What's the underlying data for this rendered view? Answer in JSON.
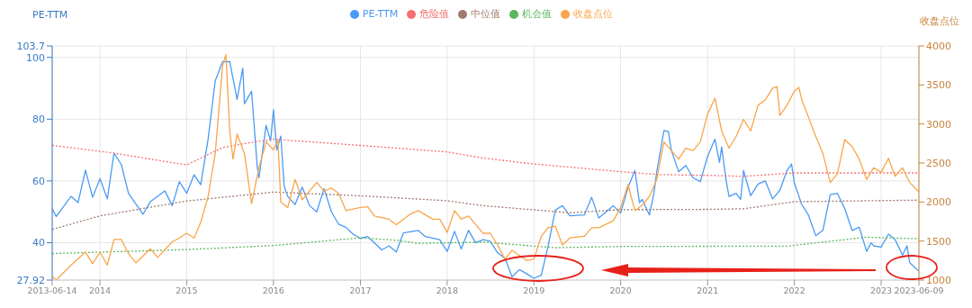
{
  "chart_data": {
    "type": "line",
    "ylabel": "PE-TTM",
    "y2label": "收盘点位",
    "xlim": [
      "2013-06-14",
      "2023-06-09"
    ],
    "xticks": [
      "2013-06-14",
      "2014",
      "2015",
      "2016",
      "2017",
      "2018",
      "2019",
      "2020",
      "2021",
      "2022",
      "2023",
      "2023-06-09"
    ],
    "ylim": [
      27.92,
      103.7
    ],
    "yticks": [
      27.92,
      40,
      60,
      80,
      100,
      103.7
    ],
    "y2lim": [
      1000,
      4000
    ],
    "y2ticks": [
      1000,
      1500,
      2000,
      2500,
      3000,
      3500,
      4000
    ],
    "grid": true,
    "legend": "top",
    "marker": "none",
    "line_style": "solid",
    "series": [
      {
        "name": "PE-TTM",
        "color": "#4a9af5",
        "x": [
          "2013-06-14",
          "2013-07",
          "2013-09",
          "2013-10",
          "2013-11",
          "2013-12",
          "2014-01",
          "2014-02",
          "2014-03",
          "2014-04",
          "2014-05",
          "2014-07",
          "2014-08",
          "2014-10",
          "2014-11",
          "2014-12",
          "2015-01",
          "2015-02",
          "2015-03",
          "2015-04",
          "2015-05",
          "2015-06",
          "2015-07",
          "2015-08",
          "2015-08-25",
          "2015-09",
          "2015-10",
          "2015-10-25",
          "2015-11",
          "2015-12",
          "2015-12-20",
          "2016-01",
          "2016-01-15",
          "2016-02",
          "2016-02-15",
          "2016-03",
          "2016-04",
          "2016-05",
          "2016-06",
          "2016-07",
          "2016-08",
          "2016-09",
          "2016-10",
          "2016-11",
          "2016-12",
          "2017-01",
          "2017-02",
          "2017-04",
          "2017-05",
          "2017-06",
          "2017-07",
          "2017-09",
          "2017-10",
          "2017-12",
          "2018-01",
          "2018-02",
          "2018-03",
          "2018-04",
          "2018-05",
          "2018-06",
          "2018-07",
          "2018-08",
          "2018-09",
          "2018-10",
          "2018-11",
          "2018-12",
          "2019-01",
          "2019-02",
          "2019-03",
          "2019-04",
          "2019-05",
          "2019-06",
          "2019-08",
          "2019-09",
          "2019-10",
          "2019-12",
          "2020-01",
          "2020-02",
          "2020-03",
          "2020-03-20",
          "2020-04",
          "2020-05",
          "2020-05-20",
          "2020-06",
          "2020-07",
          "2020-07-20",
          "2020-08",
          "2020-09",
          "2020-10",
          "2020-11",
          "2020-12",
          "2021-01",
          "2021-02",
          "2021-02-20",
          "2021-03",
          "2021-03-20",
          "2021-04",
          "2021-05",
          "2021-05-20",
          "2021-06",
          "2021-07",
          "2021-08",
          "2021-09",
          "2021-10",
          "2021-11",
          "2021-12",
          "2021-12-20",
          "2022-01",
          "2022-02",
          "2022-03",
          "2022-04",
          "2022-05",
          "2022-06",
          "2022-07",
          "2022-08",
          "2022-09",
          "2022-10",
          "2022-11",
          "2022-11-20",
          "2022-12",
          "2023-01",
          "2023-02",
          "2023-03",
          "2023-04",
          "2023-04-20",
          "2023-05",
          "2023-06-09"
        ],
        "values": [
          51,
          48.5,
          55,
          53,
          63.5,
          54.7,
          60.7,
          54.2,
          69,
          65.3,
          56,
          49.2,
          53.3,
          56.8,
          52,
          59.8,
          56,
          62,
          58.8,
          73.5,
          92.4,
          98.6,
          98.6,
          86.4,
          96.5,
          85,
          89,
          64.4,
          61,
          78,
          73,
          83,
          70,
          74.5,
          58.4,
          55,
          52.4,
          58,
          52,
          50,
          57.5,
          50,
          46,
          45,
          42.8,
          41.4,
          42,
          37.7,
          39,
          37,
          43.2,
          44,
          42,
          41,
          37.2,
          43.7,
          38,
          44,
          40,
          41,
          40.5,
          36.8,
          35,
          29,
          31.3,
          30,
          28.5,
          29.5,
          38.6,
          50.6,
          52,
          48.7,
          49,
          54.7,
          48,
          52,
          49.6,
          57.9,
          63.4,
          53,
          54,
          49,
          56,
          63,
          76.3,
          76,
          70,
          63,
          65,
          61,
          59.8,
          68,
          73.5,
          66,
          71,
          60,
          55,
          56,
          54,
          63.4,
          55.2,
          59,
          60,
          54.2,
          57,
          63.4,
          65.5,
          59.3,
          52.4,
          49,
          42.3,
          44,
          55.6,
          56,
          51,
          44,
          45,
          37.2,
          40,
          39,
          38.6,
          42.8,
          41,
          36,
          39,
          33.6,
          30.8
        ]
      },
      {
        "name": "危险值",
        "color": "#f57070",
        "line_style": "dotted",
        "x": [
          "2013-06-14",
          "2014-03",
          "2015-01",
          "2015-06",
          "2015-10",
          "2016-01",
          "2017-01",
          "2018-01",
          "2018-06",
          "2019-01",
          "2020-01",
          "2020-06",
          "2021-01",
          "2021-06",
          "2022-01",
          "2023-06-09"
        ],
        "values": [
          71.5,
          69,
          65.2,
          70.8,
          72.5,
          73.5,
          71.5,
          69.4,
          67.4,
          65.5,
          63,
          62.1,
          61.8,
          61.5,
          62.6,
          62.6
        ]
      },
      {
        "name": "中位值",
        "color": "#a07a70",
        "line_style": "dotted",
        "x": [
          "2013-06-14",
          "2014-01",
          "2015-01",
          "2016-01",
          "2017-01",
          "2018-01",
          "2018-06",
          "2019-06",
          "2020-01",
          "2021-01",
          "2021-06",
          "2022-01",
          "2023-06-09"
        ],
        "values": [
          44.3,
          48.7,
          53.5,
          56.4,
          55.2,
          53.6,
          52,
          49.7,
          50.7,
          50.8,
          51,
          53.3,
          53.8
        ]
      },
      {
        "name": "机会值",
        "color": "#5db85d",
        "line_style": "dotted",
        "x": [
          "2013-06-14",
          "2015-01",
          "2016-01",
          "2017-01",
          "2017-06",
          "2017-09",
          "2018-06",
          "2019-04",
          "2020-01",
          "2021-12",
          "2022-06",
          "2022-11",
          "2023-06-09"
        ],
        "values": [
          36.5,
          37.8,
          39.1,
          41.6,
          40.8,
          39.8,
          40.2,
          38.4,
          38.8,
          38.9,
          40.5,
          41.8,
          41.3
        ]
      },
      {
        "name": "收盘点位",
        "color": "#f9a54a",
        "axis": "y2",
        "x": [
          "2013-06-14",
          "2013-07",
          "2013-09",
          "2013-11",
          "2013-12",
          "2014-01",
          "2014-02",
          "2014-03",
          "2014-04",
          "2014-05",
          "2014-06",
          "2014-08",
          "2014-09",
          "2014-11",
          "2014-12",
          "2015-01",
          "2015-02",
          "2015-03",
          "2015-04",
          "2015-05",
          "2015-06",
          "2015-06-15",
          "2015-07",
          "2015-07-15",
          "2015-08",
          "2015-09",
          "2015-10",
          "2015-11",
          "2015-12",
          "2016-01",
          "2016-01-20",
          "2016-02",
          "2016-03",
          "2016-04",
          "2016-05",
          "2016-07",
          "2016-08",
          "2016-09",
          "2016-10",
          "2016-11",
          "2017-01",
          "2017-02",
          "2017-03",
          "2017-05",
          "2017-06",
          "2017-08",
          "2017-09",
          "2017-11",
          "2017-12",
          "2018-01",
          "2018-02",
          "2018-03",
          "2018-04",
          "2018-06",
          "2018-07",
          "2018-08",
          "2018-09",
          "2018-10",
          "2018-12",
          "2019-01",
          "2019-02",
          "2019-03",
          "2019-04",
          "2019-05",
          "2019-06",
          "2019-08",
          "2019-09",
          "2019-10",
          "2019-12",
          "2020-01",
          "2020-02",
          "2020-03",
          "2020-04",
          "2020-05",
          "2020-06",
          "2020-07",
          "2020-08",
          "2020-09",
          "2020-10",
          "2020-11",
          "2020-12",
          "2021-01",
          "2021-02",
          "2021-03",
          "2021-04",
          "2021-05",
          "2021-06",
          "2021-07",
          "2021-08",
          "2021-09",
          "2021-10",
          "2021-10-20",
          "2021-11",
          "2021-12",
          "2022-01",
          "2022-01-20",
          "2022-02",
          "2022-03",
          "2022-04",
          "2022-05",
          "2022-06",
          "2022-07",
          "2022-08",
          "2022-09",
          "2022-10",
          "2022-11",
          "2022-12",
          "2023-01",
          "2023-02",
          "2023-03",
          "2023-04",
          "2023-05",
          "2023-06-09"
        ],
        "values": [
          1050,
          1000,
          1190,
          1360,
          1210,
          1360,
          1190,
          1520,
          1520,
          1340,
          1220,
          1400,
          1290,
          1490,
          1540,
          1600,
          1540,
          1740,
          2070,
          2620,
          3750,
          3890,
          2910,
          2550,
          2870,
          2620,
          1980,
          2440,
          2770,
          2670,
          2800,
          2000,
          1930,
          2290,
          2030,
          2250,
          2140,
          2180,
          2110,
          1890,
          1930,
          1940,
          1820,
          1780,
          1710,
          1850,
          1890,
          1780,
          1780,
          1610,
          1890,
          1780,
          1820,
          1600,
          1600,
          1450,
          1270,
          1380,
          1250,
          1270,
          1560,
          1670,
          1690,
          1450,
          1540,
          1560,
          1670,
          1670,
          1760,
          1930,
          2220,
          1890,
          1960,
          2070,
          2290,
          2770,
          2660,
          2550,
          2690,
          2660,
          2770,
          3130,
          3330,
          2910,
          2690,
          2840,
          3060,
          2910,
          3240,
          3310,
          3460,
          3480,
          3110,
          3240,
          3420,
          3470,
          3310,
          3090,
          2840,
          2620,
          2250,
          2360,
          2800,
          2710,
          2550,
          2290,
          2440,
          2380,
          2560,
          2330,
          2440,
          2250,
          2130
        ]
      }
    ]
  }
}
